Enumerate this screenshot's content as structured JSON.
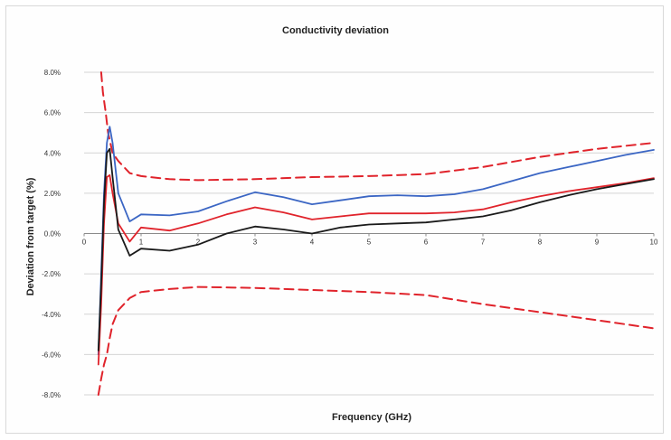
{
  "chart_data": {
    "type": "line",
    "title": "Conductivity deviation",
    "xlabel": "Frequency (GHz)",
    "ylabel": "Deviation from target (%)",
    "xlim": [
      0,
      10
    ],
    "ylim": [
      -8,
      8
    ],
    "x_ticks": [
      0,
      1,
      2,
      3,
      4,
      5,
      6,
      7,
      8,
      9,
      10
    ],
    "x_tick_labels": [
      "0",
      "1",
      "2",
      "3",
      "4",
      "5",
      "6",
      "7",
      "8",
      "9",
      "10"
    ],
    "y_ticks": [
      8,
      6,
      4,
      2,
      0,
      -2,
      -4,
      -6,
      -8
    ],
    "y_tick_labels": [
      "8.0%",
      "6.0%",
      "4.0%",
      "2.0%",
      "0.0%",
      "-2.0%",
      "-4.0%",
      "-6.0%",
      "-8.0%"
    ],
    "grid": "horizontal",
    "legend": "none",
    "series": [
      {
        "color": "#e0232b",
        "style": "dashed",
        "x": [
          0.3,
          0.33,
          0.38,
          0.42,
          0.5,
          0.6,
          0.8,
          1.0,
          1.5,
          2.0,
          3.0,
          4.0,
          5.0,
          6.0,
          7.0,
          8.0,
          9.0,
          10.0
        ],
        "y": [
          8.0,
          7.0,
          6.0,
          5.0,
          4.0,
          3.6,
          3.0,
          2.85,
          2.7,
          2.65,
          2.7,
          2.8,
          2.85,
          2.95,
          3.3,
          3.8,
          4.2,
          4.5
        ]
      },
      {
        "color": "#e0232b",
        "style": "dashed",
        "x": [
          0.25,
          0.3,
          0.35,
          0.4,
          0.45,
          0.5,
          0.6,
          0.8,
          1.0,
          1.5,
          2.0,
          3.0,
          4.0,
          5.0,
          6.0,
          7.0,
          8.0,
          9.0,
          10.0
        ],
        "y": [
          -8.0,
          -7.2,
          -6.5,
          -6.0,
          -5.2,
          -4.5,
          -3.8,
          -3.2,
          -2.9,
          -2.75,
          -2.65,
          -2.7,
          -2.8,
          -2.9,
          -3.05,
          -3.5,
          -3.9,
          -4.3,
          -4.7
        ]
      },
      {
        "color": "#3b66c4",
        "style": "solid",
        "x": [
          0.25,
          0.3,
          0.35,
          0.4,
          0.45,
          0.5,
          0.6,
          0.8,
          1.0,
          1.5,
          2.0,
          2.5,
          3.0,
          3.5,
          4.0,
          4.5,
          5.0,
          5.5,
          6.0,
          6.5,
          7.0,
          7.5,
          8.0,
          8.5,
          9.0,
          9.5,
          10.0
        ],
        "y": [
          -6.0,
          -2.0,
          2.0,
          4.5,
          5.3,
          4.5,
          2.0,
          0.6,
          0.95,
          0.9,
          1.1,
          1.6,
          2.05,
          1.8,
          1.45,
          1.65,
          1.85,
          1.9,
          1.85,
          1.95,
          2.2,
          2.6,
          3.0,
          3.3,
          3.6,
          3.9,
          4.15
        ]
      },
      {
        "color": "#e0232b",
        "style": "solid",
        "x": [
          0.25,
          0.3,
          0.35,
          0.4,
          0.45,
          0.5,
          0.6,
          0.8,
          1.0,
          1.5,
          2.0,
          2.5,
          3.0,
          3.5,
          4.0,
          4.5,
          5.0,
          5.5,
          6.0,
          6.5,
          7.0,
          7.5,
          8.0,
          8.5,
          9.0,
          9.5,
          10.0
        ],
        "y": [
          -6.5,
          -3.5,
          0.5,
          2.8,
          2.9,
          2.0,
          0.5,
          -0.4,
          0.3,
          0.15,
          0.5,
          0.95,
          1.3,
          1.05,
          0.7,
          0.85,
          1.0,
          1.0,
          1.0,
          1.05,
          1.2,
          1.55,
          1.85,
          2.1,
          2.3,
          2.5,
          2.75
        ]
      },
      {
        "color": "#1a1a1a",
        "style": "solid",
        "x": [
          0.25,
          0.3,
          0.35,
          0.4,
          0.45,
          0.5,
          0.6,
          0.8,
          1.0,
          1.5,
          2.0,
          2.5,
          3.0,
          3.5,
          4.0,
          4.5,
          5.0,
          5.5,
          6.0,
          6.5,
          7.0,
          7.5,
          8.0,
          8.5,
          9.0,
          9.5,
          10.0
        ],
        "y": [
          -5.8,
          -2.5,
          1.5,
          4.0,
          4.2,
          2.8,
          0.2,
          -1.1,
          -0.75,
          -0.85,
          -0.55,
          0.0,
          0.35,
          0.2,
          0.0,
          0.3,
          0.45,
          0.5,
          0.55,
          0.7,
          0.85,
          1.15,
          1.55,
          1.9,
          2.2,
          2.45,
          2.7
        ]
      }
    ]
  }
}
